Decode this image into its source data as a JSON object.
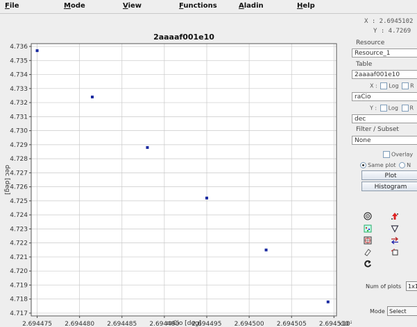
{
  "menu": [
    "File",
    "Mode",
    "View",
    "Functions",
    "Aladin",
    "Help"
  ],
  "coords": {
    "x": "X : 2.6945102",
    "y": "Y : 4.7269"
  },
  "panel": {
    "resource_label": "Resource",
    "resource_value": "Resource_1",
    "table_label": "Table",
    "table_value": "2aaaaf001e10",
    "x_axis": {
      "label": "X :",
      "log": "Log",
      "r": "R",
      "value": "raCio"
    },
    "y_axis": {
      "label": "Y :",
      "log": "Log",
      "r": "R",
      "value": "dec"
    },
    "filter_label": "Filter / Subset",
    "filter_value": "None",
    "overlay_label": "Overlay",
    "same_plot_label": "Same plot",
    "new_plot_label": "N",
    "plot_button": "Plot",
    "histogram_button": "Histogram",
    "num_plots_label": "Num of plots",
    "num_plots_value": "1x1",
    "mode_label": "Mode",
    "mode_value": "Select"
  },
  "tools": [
    "target-icon",
    "arrow-up-red-icon",
    "select-points-icon",
    "filter-triangle-icon",
    "crop-icon",
    "swap-icon",
    "eraser-icon",
    "frame-icon",
    "refresh-icon"
  ],
  "chart_data": {
    "type": "scatter",
    "title": "2aaaaf001e10",
    "xlabel": "raCio [deg]",
    "ylabel": "dec [deg]",
    "x_multiplier_label": "x10²",
    "xlim": [
      2.6944743,
      2.6945103
    ],
    "ylim": [
      4.7168,
      4.7362
    ],
    "x_ticks": [
      2.694475,
      2.69448,
      2.694485,
      2.69449,
      2.694495,
      2.6945,
      2.694505,
      2.69451
    ],
    "x_tick_labels": [
      "2.694475",
      "2.694480",
      "2.694485",
      "2.694490",
      "2.694495",
      "2.694500",
      "2.694505",
      "2.694510"
    ],
    "y_ticks": [
      4.717,
      4.718,
      4.719,
      4.72,
      4.721,
      4.722,
      4.723,
      4.724,
      4.725,
      4.726,
      4.727,
      4.728,
      4.729,
      4.73,
      4.731,
      4.732,
      4.733,
      4.734,
      4.735,
      4.736
    ],
    "y_tick_labels": [
      "4.717",
      "4.718",
      "4.719",
      "4.720",
      "4.721",
      "4.722",
      "4.723",
      "4.724",
      "4.725",
      "4.726",
      "4.727",
      "4.728",
      "4.729",
      "4.730",
      "4.731",
      "4.732",
      "4.733",
      "4.734",
      "4.735",
      "4.736"
    ],
    "grid": true,
    "point_color": "#1a2aa0",
    "points": [
      {
        "x": 2.694475,
        "y": 4.7357
      },
      {
        "x": 2.6944815,
        "y": 4.7324
      },
      {
        "x": 2.694488,
        "y": 4.7288
      },
      {
        "x": 2.694495,
        "y": 4.7252
      },
      {
        "x": 2.694502,
        "y": 4.7215
      },
      {
        "x": 2.6945093,
        "y": 4.7178
      }
    ]
  }
}
